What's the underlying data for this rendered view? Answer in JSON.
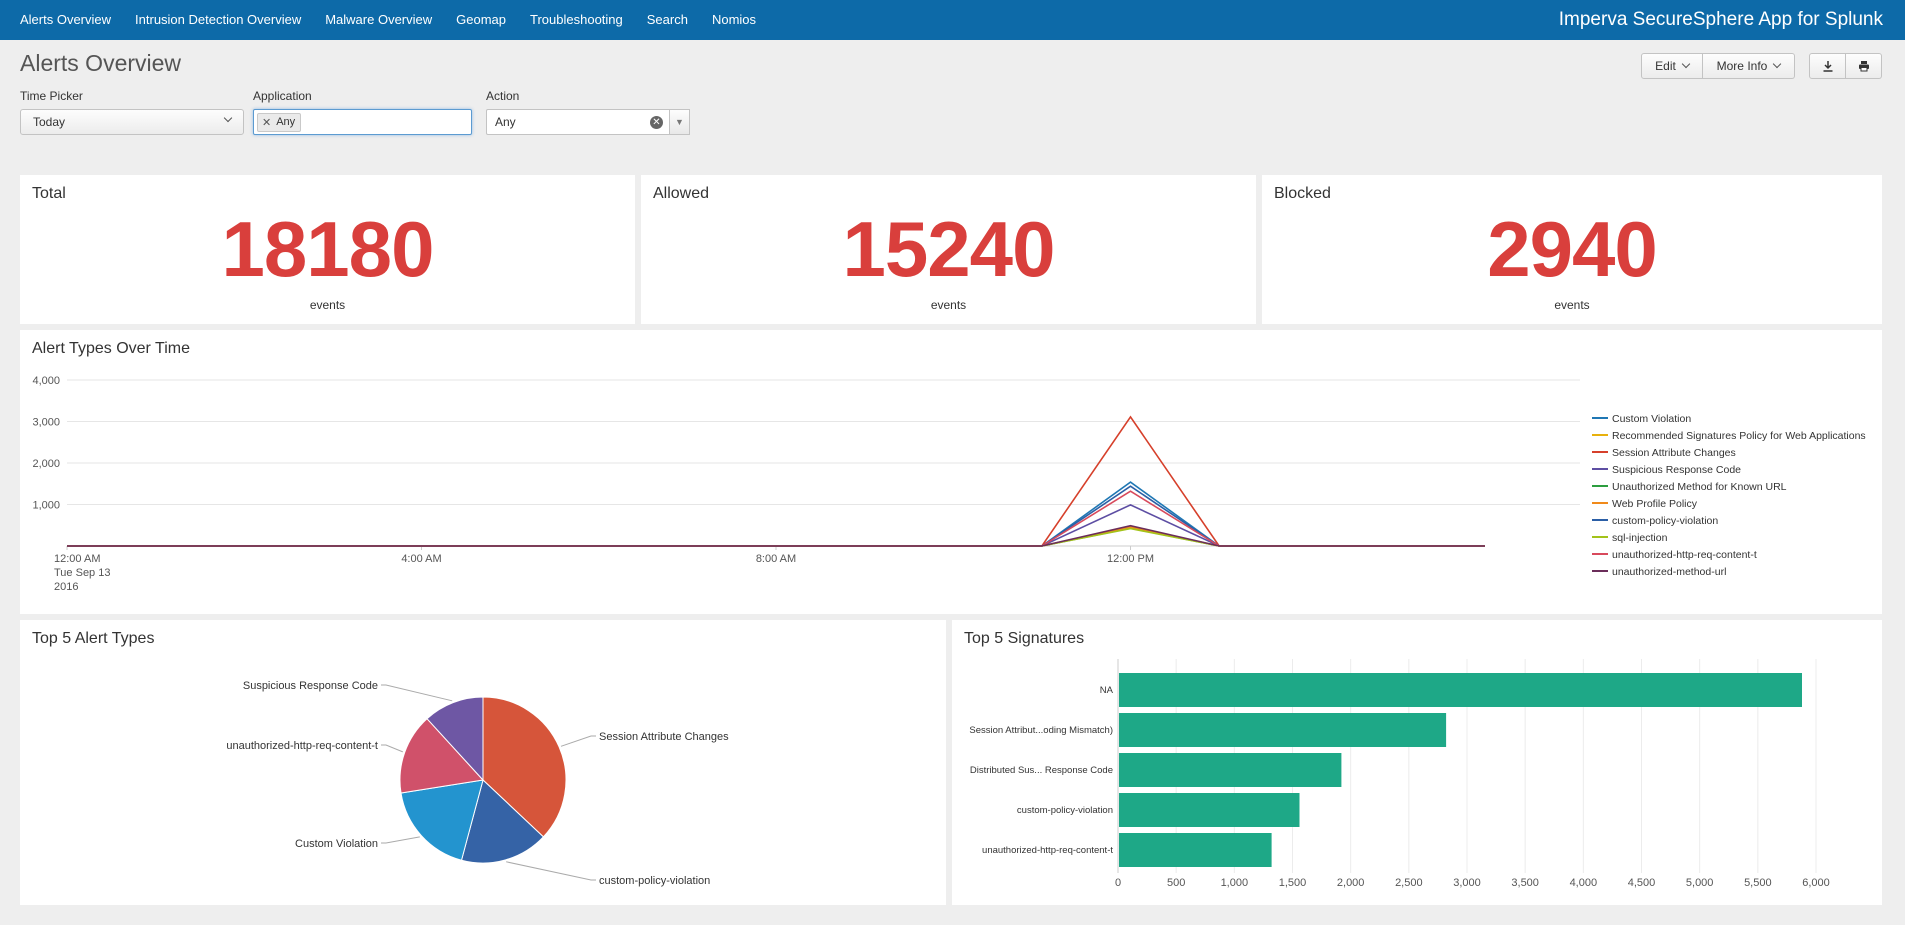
{
  "nav": {
    "items": [
      "Alerts Overview",
      "Intrusion Detection Overview",
      "Malware Overview",
      "Geomap",
      "Troubleshooting",
      "Search",
      "Nomios"
    ],
    "app_title": "Imperva SecureSphere App for Splunk"
  },
  "page_title": "Alerts Overview",
  "toolbar": {
    "edit_label": "Edit",
    "more_info_label": "More Info",
    "export_icon": "download-icon",
    "print_icon": "print-icon"
  },
  "inputs": {
    "time_picker": {
      "label": "Time Picker",
      "value": "Today"
    },
    "application": {
      "label": "Application",
      "token": "Any"
    },
    "action": {
      "label": "Action",
      "value": "Any"
    }
  },
  "singles": [
    {
      "title": "Total",
      "value": "18180",
      "unit": "events"
    },
    {
      "title": "Allowed",
      "value": "15240",
      "unit": "events"
    },
    {
      "title": "Blocked",
      "value": "2940",
      "unit": "events"
    }
  ],
  "colors": {
    "nav": "#0d6aa8",
    "accent_red": "#d93f3c",
    "bar": "#1ea887"
  },
  "chart_data": [
    {
      "type": "line",
      "title": "Alert Types Over Time",
      "x": [
        "12:00 AM Tue Sep 13 2016",
        "1:00 AM",
        "2:00 AM",
        "3:00 AM",
        "4:00 AM",
        "5:00 AM",
        "6:00 AM",
        "7:00 AM",
        "8:00 AM",
        "9:00 AM",
        "10:00 AM",
        "11:00 AM",
        "12:00 PM",
        "1:00 PM",
        "2:00 PM",
        "3:00 PM",
        "4:00 PM"
      ],
      "xticks": [
        {
          "label": "12:00 AM",
          "sublabel": "Tue Sep 13",
          "sublabel2": "2016"
        },
        {
          "label": "4:00 AM"
        },
        {
          "label": "8:00 AM"
        },
        {
          "label": "12:00 PM"
        }
      ],
      "ylim": [
        0,
        4000
      ],
      "yticks": [
        "1,000",
        "2,000",
        "3,000",
        "4,000"
      ],
      "grid": true,
      "legend_position": "right",
      "series": [
        {
          "name": "Custom Violation",
          "color": "#1f77b4",
          "values": [
            0,
            0,
            0,
            0,
            0,
            0,
            0,
            0,
            0,
            0,
            0,
            0,
            1540,
            0,
            0,
            0,
            0
          ]
        },
        {
          "name": "Recommended Signatures Policy for Web Applications",
          "color": "#e8b10d",
          "values": [
            0,
            0,
            0,
            0,
            0,
            0,
            0,
            0,
            0,
            0,
            0,
            0,
            470,
            0,
            0,
            0,
            0
          ]
        },
        {
          "name": "Session Attribute Changes",
          "color": "#d6402b",
          "values": [
            0,
            0,
            0,
            0,
            0,
            0,
            0,
            0,
            0,
            0,
            0,
            0,
            3110,
            0,
            0,
            0,
            0
          ]
        },
        {
          "name": "Suspicious Response Code",
          "color": "#5d4ea3",
          "values": [
            0,
            0,
            0,
            0,
            0,
            0,
            0,
            0,
            0,
            0,
            0,
            0,
            990,
            0,
            0,
            0,
            0
          ]
        },
        {
          "name": "Unauthorized Method for Known URL",
          "color": "#2c9e3f",
          "values": [
            0,
            0,
            0,
            0,
            0,
            0,
            0,
            0,
            0,
            0,
            0,
            0,
            430,
            0,
            0,
            0,
            0
          ]
        },
        {
          "name": "Web Profile Policy",
          "color": "#f08a1a",
          "values": [
            0,
            0,
            0,
            0,
            0,
            0,
            0,
            0,
            0,
            0,
            0,
            0,
            450,
            0,
            0,
            0,
            0
          ]
        },
        {
          "name": "custom-policy-violation",
          "color": "#2b5fa6",
          "values": [
            0,
            0,
            0,
            0,
            0,
            0,
            0,
            0,
            0,
            0,
            0,
            0,
            1440,
            0,
            0,
            0,
            0
          ]
        },
        {
          "name": "sql-injection",
          "color": "#a3c31a",
          "values": [
            0,
            0,
            0,
            0,
            0,
            0,
            0,
            0,
            0,
            0,
            0,
            0,
            420,
            0,
            0,
            0,
            0
          ]
        },
        {
          "name": "unauthorized-http-req-content-t",
          "color": "#d84a5c",
          "values": [
            0,
            0,
            0,
            0,
            0,
            0,
            0,
            0,
            0,
            0,
            0,
            0,
            1320,
            0,
            0,
            0,
            0
          ]
        },
        {
          "name": "unauthorized-method-url",
          "color": "#6b2d5a",
          "values": [
            0,
            0,
            0,
            0,
            0,
            0,
            0,
            0,
            0,
            0,
            0,
            0,
            490,
            0,
            0,
            0,
            0
          ]
        }
      ]
    },
    {
      "type": "pie",
      "title": "Top 5 Alert Types",
      "slices": [
        {
          "label": "Session Attribute Changes",
          "value": 3110,
          "color": "#d6553a"
        },
        {
          "label": "custom-policy-violation",
          "value": 1440,
          "color": "#3563a6"
        },
        {
          "label": "Custom Violation",
          "value": 1540,
          "color": "#2394cf"
        },
        {
          "label": "unauthorized-http-req-content-t",
          "value": 1320,
          "color": "#d0516a"
        },
        {
          "label": "Suspicious Response Code",
          "value": 990,
          "color": "#6e57a4"
        }
      ]
    },
    {
      "type": "bar",
      "orientation": "horizontal",
      "title": "Top 5 Signatures",
      "categories": [
        "NA",
        "Session Attribut...oding Mismatch)",
        "Distributed Sus... Response Code",
        "custom-policy-violation",
        "unauthorized-http-req-content-t"
      ],
      "values": [
        5880,
        2820,
        1920,
        1560,
        1320
      ],
      "xlim": [
        0,
        6000
      ],
      "xticks": [
        "0",
        "500",
        "1,000",
        "1,500",
        "2,000",
        "2,500",
        "3,000",
        "3,500",
        "4,000",
        "4,500",
        "5,000",
        "5,500",
        "6,000"
      ],
      "color": "#1ea887",
      "grid": true
    }
  ]
}
